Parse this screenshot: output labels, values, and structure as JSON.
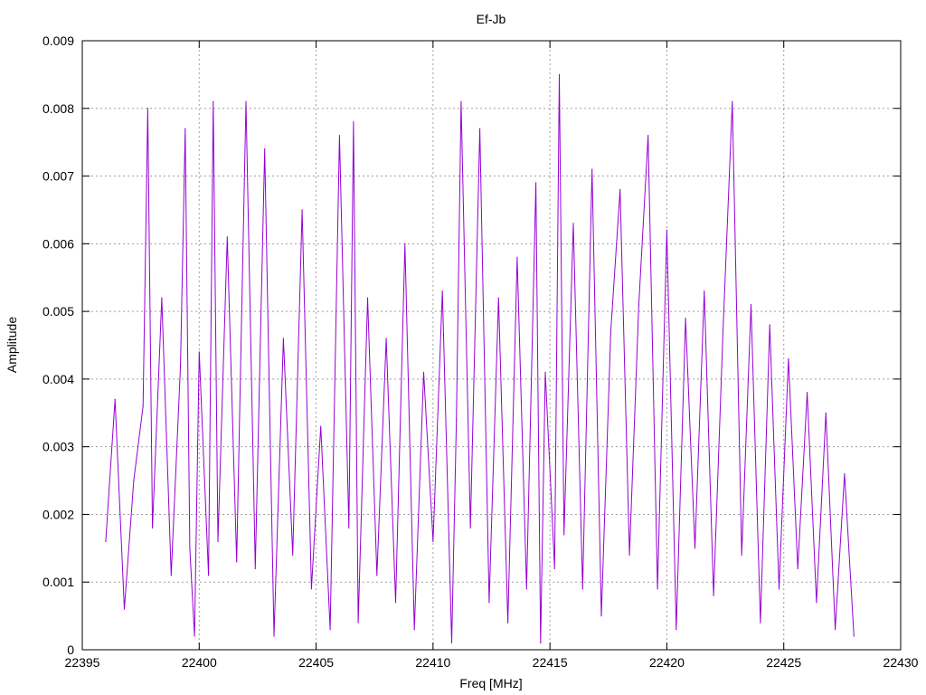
{
  "chart_data": {
    "type": "line",
    "title": "Ef-Jb",
    "xlabel": "Freq [MHz]",
    "ylabel": "Amplitude",
    "xlim": [
      22395,
      22430
    ],
    "ylim": [
      0,
      0.009
    ],
    "x_ticks": [
      "22395",
      "22400",
      "22405",
      "22410",
      "22415",
      "22420",
      "22425",
      "22430"
    ],
    "y_ticks": [
      "0",
      "0.001",
      "0.002",
      "0.003",
      "0.004",
      "0.005",
      "0.006",
      "0.007",
      "0.008",
      "0.009"
    ],
    "grid": true,
    "legend": "none",
    "colors": {
      "series": "#9400d3",
      "grid": "#a0a0a0",
      "axis": "#000000"
    },
    "series": [
      {
        "x": [
          22396.0,
          22396.4,
          22396.8,
          22397.2,
          22397.6,
          22397.8,
          22398.0,
          22398.4,
          22398.8,
          22399.2,
          22399.4,
          22399.6,
          22399.8,
          22400.0,
          22400.4,
          22400.6,
          22400.8,
          22401.2,
          22401.6,
          22402.0,
          22402.4,
          22402.8,
          22403.2,
          22403.6,
          22404.0,
          22404.4,
          22404.8,
          22405.2,
          22405.6,
          22406.0,
          22406.4,
          22406.6,
          22406.8,
          22407.2,
          22407.6,
          22408.0,
          22408.4,
          22408.8,
          22409.2,
          22409.6,
          22410.0,
          22410.4,
          22410.8,
          22411.0,
          22411.2,
          22411.6,
          22412.0,
          22412.4,
          22412.8,
          22413.2,
          22413.6,
          22414.0,
          22414.4,
          22414.6,
          22414.8,
          22415.2,
          22415.4,
          22415.6,
          22416.0,
          22416.4,
          22416.8,
          22417.2,
          22417.6,
          22418.0,
          22418.4,
          22418.8,
          22419.2,
          22419.6,
          22420.0,
          22420.4,
          22420.8,
          22421.2,
          22421.6,
          22422.0,
          22422.4,
          22422.8,
          22423.2,
          22423.6,
          22424.0,
          22424.4,
          22424.8,
          22425.2,
          22425.6,
          22426.0,
          22426.4,
          22426.8,
          22427.2,
          22427.6,
          22428.0
        ],
        "y": [
          0.0016,
          0.0037,
          0.0006,
          0.0025,
          0.0036,
          0.008,
          0.0018,
          0.0052,
          0.0011,
          0.0042,
          0.0077,
          0.0015,
          0.0002,
          0.0044,
          0.0011,
          0.0081,
          0.0016,
          0.0061,
          0.0013,
          0.0081,
          0.0012,
          0.0074,
          0.0002,
          0.0046,
          0.0014,
          0.0065,
          0.0009,
          0.0033,
          0.0003,
          0.0076,
          0.0018,
          0.0078,
          0.0004,
          0.0052,
          0.0011,
          0.0046,
          0.0007,
          0.006,
          0.0003,
          0.0041,
          0.0016,
          0.0053,
          0.0001,
          0.0034,
          0.0081,
          0.0018,
          0.0077,
          0.0007,
          0.0052,
          0.0004,
          0.0058,
          0.0009,
          0.0069,
          0.0001,
          0.0041,
          0.0012,
          0.0085,
          0.0017,
          0.0063,
          0.0009,
          0.0071,
          0.0005,
          0.0047,
          0.0068,
          0.0014,
          0.0051,
          0.0076,
          0.0009,
          0.0062,
          0.0003,
          0.0049,
          0.0015,
          0.0053,
          0.0008,
          0.0047,
          0.0081,
          0.0014,
          0.0051,
          0.0004,
          0.0048,
          0.0009,
          0.0043,
          0.0012,
          0.0038,
          0.0007,
          0.0035,
          0.0003,
          0.0026,
          0.0002
        ]
      }
    ]
  }
}
